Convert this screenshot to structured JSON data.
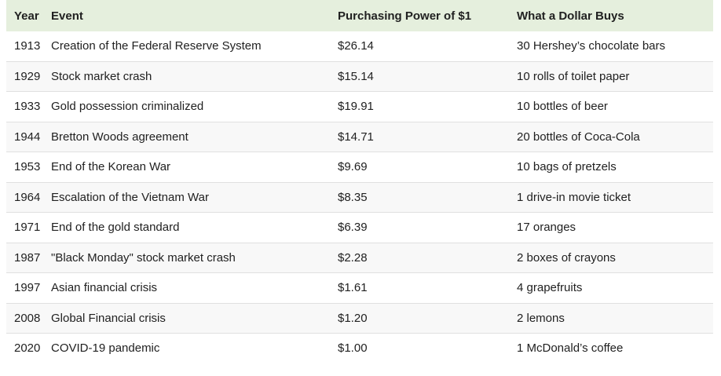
{
  "chart_data": {
    "type": "table",
    "columns": [
      "Year",
      "Event",
      "Purchasing Power of $1",
      "What a Dollar Buys"
    ],
    "column_keys": [
      "year",
      "event",
      "power",
      "buys"
    ],
    "rows": [
      [
        "1913",
        "Creation of the Federal Reserve System",
        "$26.14",
        "30 Hershey’s chocolate bars"
      ],
      [
        "1929",
        "Stock market crash",
        "$15.14",
        "10 rolls of toilet paper"
      ],
      [
        "1933",
        "Gold possession criminalized",
        "$19.91",
        "10 bottles of beer"
      ],
      [
        "1944",
        "Bretton Woods agreement",
        "$14.71",
        "20 bottles of Coca-Cola"
      ],
      [
        "1953",
        "End of the Korean War",
        "$9.69",
        "10 bags of pretzels"
      ],
      [
        "1964",
        "Escalation of the Vietnam War",
        "$8.35",
        "1 drive-in movie ticket"
      ],
      [
        "1971",
        "End of the gold standard",
        "$6.39",
        "17 oranges"
      ],
      [
        "1987",
        "\"Black Monday\" stock market crash",
        "$2.28",
        "2 boxes of crayons"
      ],
      [
        "1997",
        "Asian financial crisis",
        "$1.61",
        "4 grapefruits"
      ],
      [
        "2008",
        "Global Financial crisis",
        "$1.20",
        "2 lemons"
      ],
      [
        "2020",
        "COVID-19 pandemic",
        "$1.00",
        "1 McDonald’s coffee"
      ]
    ]
  },
  "colors": {
    "header_bg": "#e5efdd",
    "stripe_bg": "#f8f8f8",
    "border": "#e0e0e0",
    "text": "#212121"
  }
}
